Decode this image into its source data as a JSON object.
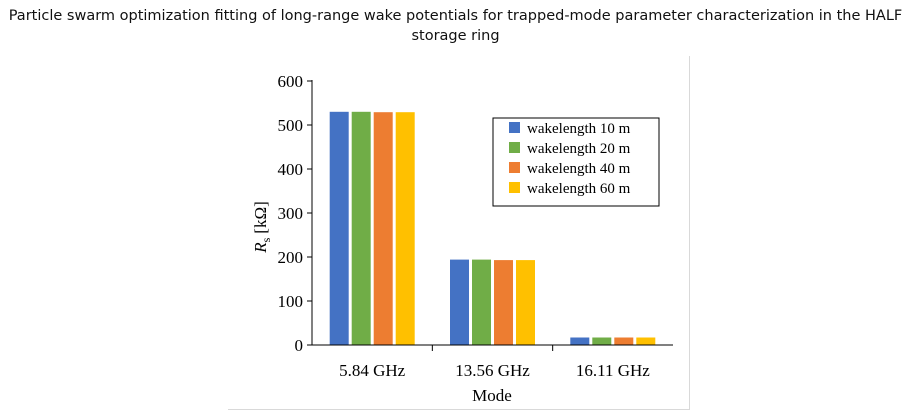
{
  "title": "Particle swarm optimization fitting of long-range wake potentials for trapped-mode parameter characterization in the HALF storage ring",
  "chart_data": {
    "type": "bar",
    "categories": [
      "5.84 GHz",
      "13.56 GHz",
      "16.11 GHz"
    ],
    "series": [
      {
        "name": "wakelength 10 m",
        "color": "#4472c4",
        "values": [
          530,
          194,
          17
        ]
      },
      {
        "name": "wakelength 20 m",
        "color": "#70ad47",
        "values": [
          530,
          194,
          17
        ]
      },
      {
        "name": "wakelength 40 m",
        "color": "#ed7d31",
        "values": [
          529,
          193,
          17
        ]
      },
      {
        "name": "wakelength 60 m",
        "color": "#ffc000",
        "values": [
          529,
          193,
          17
        ]
      }
    ],
    "xlabel": "Mode",
    "ylabel_symbol": "R",
    "ylabel_subscript": "s",
    "ylabel_unit": "[kΩ]",
    "ylim": [
      0,
      600
    ],
    "yticks": [
      0,
      100,
      200,
      300,
      400,
      500,
      600
    ],
    "grid": false,
    "legend_position": "top-right"
  }
}
